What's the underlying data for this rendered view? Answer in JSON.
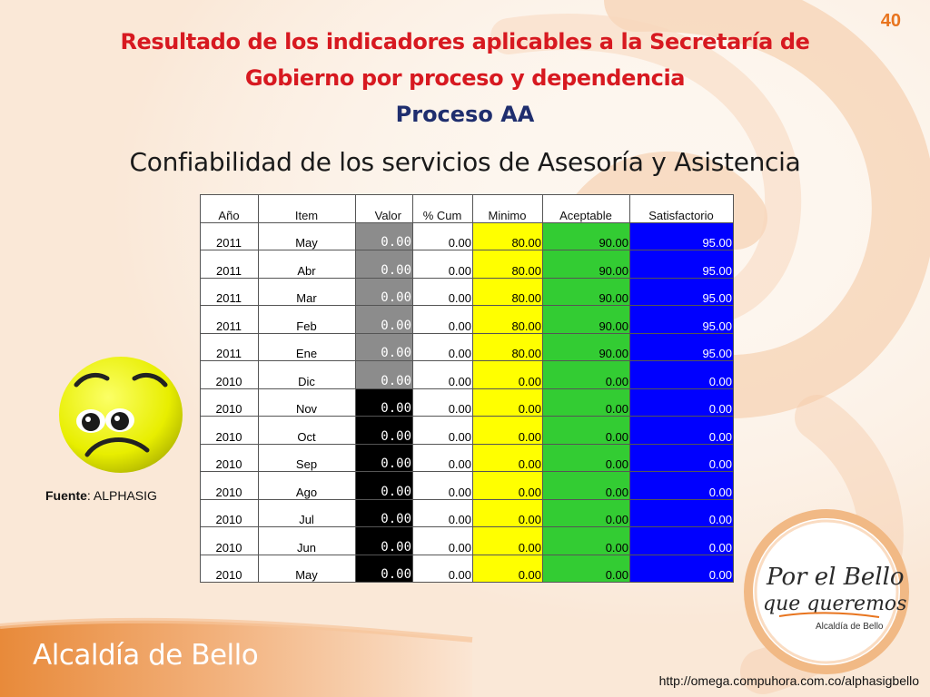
{
  "page_number": "40",
  "title_line1": "Resultado de los indicadores aplicables a la Secretaría de",
  "title_line2": "Gobierno por proceso y dependencia",
  "process": "Proceso AA",
  "subtitle": "Confiabilidad de los servicios de Asesoría y Asistencia",
  "table": {
    "headers": [
      "Año",
      "Item",
      "Valor",
      "% Cum",
      "Minimo",
      "Aceptable",
      "Satisfactorio"
    ],
    "rows": [
      {
        "anio": "2011",
        "item": "May",
        "valor": "0.00",
        "cum": "0.00",
        "minimo": "80.00",
        "aceptable": "90.00",
        "satisfactorio": "95.00",
        "valor_color": "gray"
      },
      {
        "anio": "2011",
        "item": "Abr",
        "valor": "0.00",
        "cum": "0.00",
        "minimo": "80.00",
        "aceptable": "90.00",
        "satisfactorio": "95.00",
        "valor_color": "gray"
      },
      {
        "anio": "2011",
        "item": "Mar",
        "valor": "0.00",
        "cum": "0.00",
        "minimo": "80.00",
        "aceptable": "90.00",
        "satisfactorio": "95.00",
        "valor_color": "gray"
      },
      {
        "anio": "2011",
        "item": "Feb",
        "valor": "0.00",
        "cum": "0.00",
        "minimo": "80.00",
        "aceptable": "90.00",
        "satisfactorio": "95.00",
        "valor_color": "gray"
      },
      {
        "anio": "2011",
        "item": "Ene",
        "valor": "0.00",
        "cum": "0.00",
        "minimo": "80.00",
        "aceptable": "90.00",
        "satisfactorio": "95.00",
        "valor_color": "gray"
      },
      {
        "anio": "2010",
        "item": "Dic",
        "valor": "0.00",
        "cum": "0.00",
        "minimo": "0.00",
        "aceptable": "0.00",
        "satisfactorio": "0.00",
        "valor_color": "gray"
      },
      {
        "anio": "2010",
        "item": "Nov",
        "valor": "0.00",
        "cum": "0.00",
        "minimo": "0.00",
        "aceptable": "0.00",
        "satisfactorio": "0.00",
        "valor_color": "black"
      },
      {
        "anio": "2010",
        "item": "Oct",
        "valor": "0.00",
        "cum": "0.00",
        "minimo": "0.00",
        "aceptable": "0.00",
        "satisfactorio": "0.00",
        "valor_color": "black"
      },
      {
        "anio": "2010",
        "item": "Sep",
        "valor": "0.00",
        "cum": "0.00",
        "minimo": "0.00",
        "aceptable": "0.00",
        "satisfactorio": "0.00",
        "valor_color": "black"
      },
      {
        "anio": "2010",
        "item": "Ago",
        "valor": "0.00",
        "cum": "0.00",
        "minimo": "0.00",
        "aceptable": "0.00",
        "satisfactorio": "0.00",
        "valor_color": "black"
      },
      {
        "anio": "2010",
        "item": "Jul",
        "valor": "0.00",
        "cum": "0.00",
        "minimo": "0.00",
        "aceptable": "0.00",
        "satisfactorio": "0.00",
        "valor_color": "black"
      },
      {
        "anio": "2010",
        "item": "Jun",
        "valor": "0.00",
        "cum": "0.00",
        "minimo": "0.00",
        "aceptable": "0.00",
        "satisfactorio": "0.00",
        "valor_color": "black"
      },
      {
        "anio": "2010",
        "item": "May",
        "valor": "0.00",
        "cum": "0.00",
        "minimo": "0.00",
        "aceptable": "0.00",
        "satisfactorio": "0.00",
        "valor_color": "black"
      }
    ]
  },
  "fuente": {
    "label": "Fuente",
    "value": ": ALPHASIG"
  },
  "slogan": {
    "line1": "Por el Bello",
    "line2": "que queremos",
    "line3": "Alcaldía de Bello"
  },
  "footer": {
    "brand": "Alcaldía de Bello",
    "url": "http://omega.compuhora.com.co/alphasigbello"
  },
  "colors": {
    "title": "#d71920",
    "process": "#1f2e6e",
    "accent_orange": "#e8741e",
    "minimo": "#ffff00",
    "aceptable": "#33cc33",
    "satisfactorio": "#0000ff",
    "valor_gray": "#8c8c8c",
    "valor_black": "#000000"
  }
}
